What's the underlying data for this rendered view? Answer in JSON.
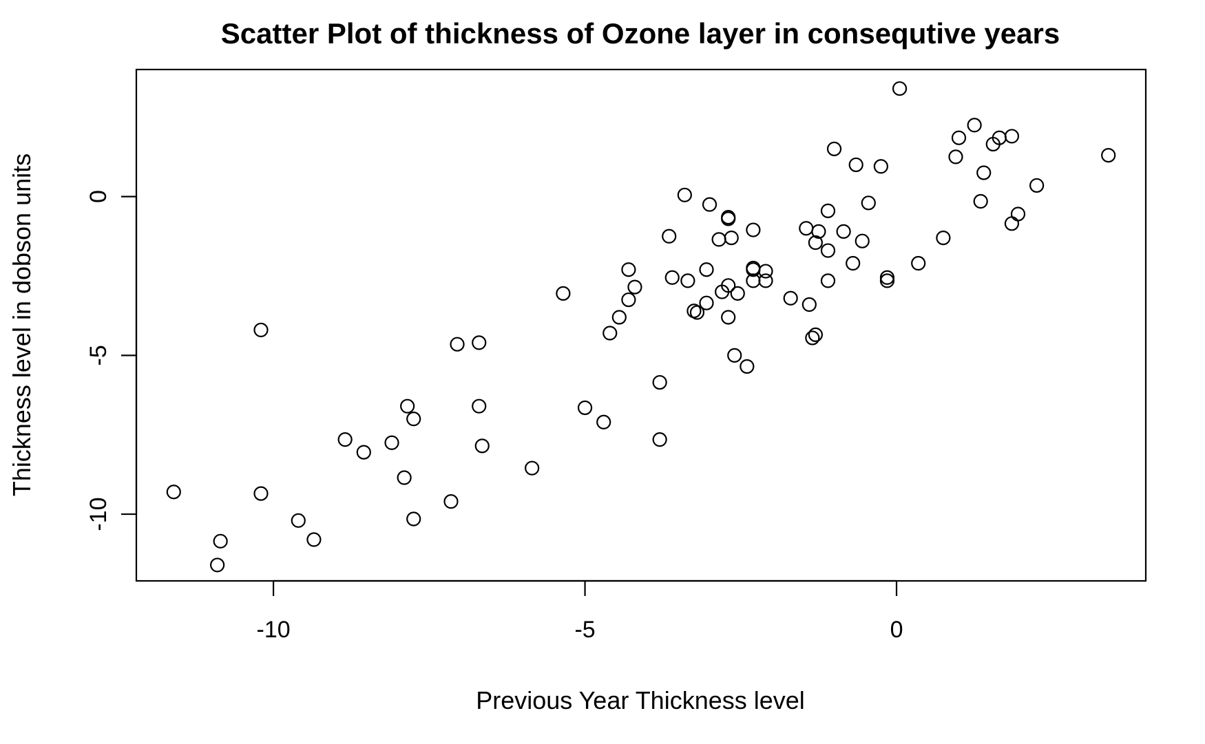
{
  "chart_data": {
    "type": "scatter",
    "title": "Scatter Plot of thickness of Ozone layer in consequtive years",
    "xlabel": "Previous Year Thickness level",
    "ylabel": "Thickness level in dobson units",
    "xlim": [
      -12.2,
      4.0
    ],
    "ylim": [
      -12.1,
      4.0
    ],
    "xticks": [
      -10,
      -5,
      0
    ],
    "xtick_labels": [
      "-10",
      "-5",
      "0"
    ],
    "yticks": [
      0,
      -5,
      -10
    ],
    "ytick_labels": [
      "0",
      "-5",
      "-10"
    ],
    "grid": false,
    "legend": "none",
    "marker": "open-circle",
    "point_color": "#000000",
    "points": [
      [
        -11.6,
        -9.3
      ],
      [
        -10.9,
        -11.6
      ],
      [
        -10.85,
        -10.85
      ],
      [
        -10.2,
        -4.2
      ],
      [
        -10.2,
        -9.35
      ],
      [
        -9.6,
        -10.2
      ],
      [
        -9.35,
        -10.8
      ],
      [
        -8.85,
        -7.65
      ],
      [
        -8.55,
        -8.05
      ],
      [
        -8.1,
        -7.75
      ],
      [
        -7.9,
        -8.85
      ],
      [
        -7.85,
        -6.6
      ],
      [
        -7.75,
        -7.0
      ],
      [
        -7.75,
        -10.15
      ],
      [
        -7.15,
        -9.6
      ],
      [
        -7.05,
        -4.65
      ],
      [
        -6.7,
        -4.6
      ],
      [
        -6.7,
        -6.6
      ],
      [
        -6.65,
        -7.85
      ],
      [
        -5.85,
        -8.55
      ],
      [
        -5.35,
        -3.05
      ],
      [
        -5.0,
        -6.65
      ],
      [
        -4.7,
        -7.1
      ],
      [
        -4.6,
        -4.3
      ],
      [
        -4.45,
        -3.8
      ],
      [
        -4.3,
        -3.25
      ],
      [
        -4.3,
        -2.3
      ],
      [
        -4.2,
        -2.85
      ],
      [
        -3.8,
        -5.85
      ],
      [
        -3.8,
        -7.65
      ],
      [
        -3.65,
        -1.25
      ],
      [
        -3.6,
        -2.55
      ],
      [
        -3.4,
        0.05
      ],
      [
        -3.35,
        -2.65
      ],
      [
        -3.25,
        -3.6
      ],
      [
        -3.2,
        -3.65
      ],
      [
        -3.05,
        -3.35
      ],
      [
        -3.05,
        -2.3
      ],
      [
        -3.0,
        -0.25
      ],
      [
        -2.85,
        -1.35
      ],
      [
        -2.8,
        -3.0
      ],
      [
        -2.7,
        -0.65
      ],
      [
        -2.7,
        -0.7
      ],
      [
        -2.7,
        -2.8
      ],
      [
        -2.7,
        -3.8
      ],
      [
        -2.65,
        -1.3
      ],
      [
        -2.6,
        -5.0
      ],
      [
        -2.55,
        -3.05
      ],
      [
        -2.4,
        -5.35
      ],
      [
        -2.3,
        -1.05
      ],
      [
        -2.3,
        -2.25
      ],
      [
        -2.3,
        -2.3
      ],
      [
        -2.3,
        -2.65
      ],
      [
        -2.1,
        -2.35
      ],
      [
        -2.1,
        -2.65
      ],
      [
        -1.7,
        -3.2
      ],
      [
        -1.45,
        -1.0
      ],
      [
        -1.4,
        -3.4
      ],
      [
        -1.35,
        -4.45
      ],
      [
        -1.3,
        -4.35
      ],
      [
        -1.3,
        -1.45
      ],
      [
        -1.25,
        -1.1
      ],
      [
        -1.1,
        -0.45
      ],
      [
        -1.1,
        -2.65
      ],
      [
        -1.1,
        -1.7
      ],
      [
        -1.0,
        1.5
      ],
      [
        -0.85,
        -1.1
      ],
      [
        -0.7,
        -2.1
      ],
      [
        -0.65,
        1.0
      ],
      [
        -0.55,
        -1.4
      ],
      [
        -0.45,
        -0.2
      ],
      [
        -0.25,
        0.95
      ],
      [
        -0.15,
        -2.65
      ],
      [
        -0.15,
        -2.55
      ],
      [
        0.05,
        3.4
      ],
      [
        0.35,
        -2.1
      ],
      [
        0.75,
        -1.3
      ],
      [
        0.95,
        1.25
      ],
      [
        1.0,
        1.85
      ],
      [
        1.25,
        2.25
      ],
      [
        1.35,
        -0.15
      ],
      [
        1.4,
        0.75
      ],
      [
        1.55,
        1.65
      ],
      [
        1.65,
        1.85
      ],
      [
        1.85,
        1.9
      ],
      [
        1.85,
        -0.85
      ],
      [
        1.95,
        -0.55
      ],
      [
        2.25,
        0.35
      ],
      [
        3.4,
        1.3
      ]
    ]
  }
}
